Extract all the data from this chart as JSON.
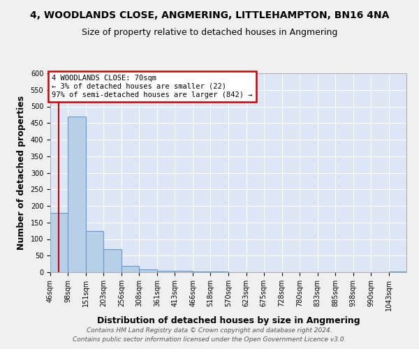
{
  "title": "4, WOODLANDS CLOSE, ANGMERING, LITTLEHAMPTON, BN16 4NA",
  "subtitle": "Size of property relative to detached houses in Angmering",
  "xlabel": "Distribution of detached houses by size in Angmering",
  "ylabel": "Number of detached properties",
  "bin_edges": [
    46,
    98,
    151,
    203,
    256,
    308,
    361,
    413,
    466,
    518,
    570,
    623,
    675,
    728,
    780,
    833,
    885,
    938,
    990,
    1043,
    1095
  ],
  "bar_heights": [
    180,
    470,
    125,
    70,
    20,
    8,
    5,
    5,
    2,
    2,
    1,
    1,
    0,
    0,
    0,
    0,
    0,
    0,
    0,
    3
  ],
  "bar_color": "#b8cfe8",
  "bar_edge_color": "#6699cc",
  "property_size": 70,
  "red_line_color": "#cc0000",
  "annotation_text": "4 WOODLANDS CLOSE: 70sqm\n← 3% of detached houses are smaller (22)\n97% of semi-detached houses are larger (842) →",
  "annotation_box_color": "#ffffff",
  "annotation_box_edge": "#cc0000",
  "ylim": [
    0,
    600
  ],
  "yticks": [
    0,
    50,
    100,
    150,
    200,
    250,
    300,
    350,
    400,
    450,
    500,
    550,
    600
  ],
  "bg_color": "#dce6f5",
  "grid_color": "#ffffff",
  "fig_bg_color": "#f0f0f0",
  "footer_line1": "Contains HM Land Registry data © Crown copyright and database right 2024.",
  "footer_line2": "Contains public sector information licensed under the Open Government Licence v3.0.",
  "title_fontsize": 10,
  "subtitle_fontsize": 9,
  "tick_label_fontsize": 7,
  "axis_label_fontsize": 9,
  "footer_fontsize": 6.5
}
